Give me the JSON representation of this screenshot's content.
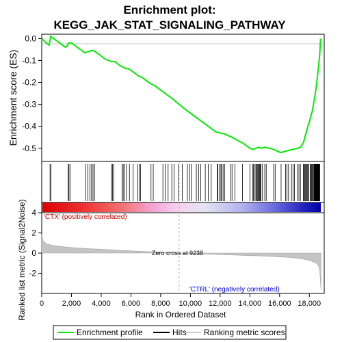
{
  "chart_data": {
    "type": "line",
    "title_line1": "Enrichment plot:",
    "title_line2": "KEGG_JAK_STAT_SIGNALING_PATHWAY",
    "es_panel": {
      "ylabel": "Enrichment score (ES)",
      "ylim": [
        -0.56,
        0.02
      ],
      "yticks": [
        0.0,
        -0.1,
        -0.2,
        -0.3,
        -0.4,
        -0.5
      ],
      "ytick_labels": [
        "0.0",
        "-0.1",
        "-0.2",
        "-0.3",
        "-0.4",
        "-0.5"
      ],
      "series": [
        {
          "name": "Enrichment profile",
          "color": "#00ee00",
          "x": [
            0,
            300,
            500,
            600,
            900,
            1200,
            1600,
            1750,
            1800,
            2000,
            2200,
            2600,
            2900,
            3100,
            3300,
            3500,
            3900,
            4300,
            4700,
            4900,
            5300,
            5600,
            5900,
            6200,
            6500,
            6800,
            7200,
            7600,
            8000,
            8400,
            8800,
            9238,
            9700,
            10200,
            10700,
            11200,
            11700,
            12000,
            12300,
            12800,
            13200,
            13600,
            14000,
            14200,
            14400,
            14600,
            14800,
            15000,
            15300,
            15600,
            15900,
            16100,
            16300,
            16600,
            16900,
            17200,
            17400,
            17600,
            17700,
            17800,
            17900,
            18000,
            18100,
            18200,
            18300,
            18400,
            18500,
            18600,
            18700,
            18750
          ],
          "y": [
            0.0,
            -0.02,
            -0.03,
            0.01,
            -0.005,
            -0.02,
            -0.04,
            -0.03,
            -0.02,
            -0.02,
            -0.03,
            -0.05,
            -0.065,
            -0.06,
            -0.055,
            -0.055,
            -0.075,
            -0.095,
            -0.105,
            -0.105,
            -0.125,
            -0.135,
            -0.14,
            -0.155,
            -0.17,
            -0.18,
            -0.2,
            -0.215,
            -0.235,
            -0.255,
            -0.275,
            -0.3,
            -0.325,
            -0.35,
            -0.375,
            -0.4,
            -0.425,
            -0.43,
            -0.435,
            -0.45,
            -0.465,
            -0.48,
            -0.5,
            -0.505,
            -0.5,
            -0.495,
            -0.5,
            -0.495,
            -0.5,
            -0.505,
            -0.515,
            -0.52,
            -0.515,
            -0.51,
            -0.505,
            -0.5,
            -0.495,
            -0.475,
            -0.45,
            -0.425,
            -0.4,
            -0.38,
            -0.355,
            -0.33,
            -0.29,
            -0.25,
            -0.2,
            -0.14,
            -0.07,
            0.0
          ]
        }
      ]
    },
    "hits": [
      560,
      620,
      1780,
      1830,
      1900,
      2950,
      3100,
      3250,
      3350,
      3450,
      3550,
      4700,
      4760,
      4850,
      5400,
      5480,
      5560,
      5700,
      5900,
      6150,
      6450,
      6550,
      6650,
      7350,
      7500,
      8150,
      8300,
      8500,
      8750,
      8900,
      9200,
      9450,
      9800,
      9950,
      10050,
      10400,
      10550,
      10700,
      11000,
      11200,
      11400,
      11800,
      11850,
      11950,
      12050,
      12100,
      12200,
      12300,
      12700,
      12800,
      13000,
      13500,
      14000,
      14200,
      14250,
      14300,
      14400,
      14450,
      14500,
      14550,
      14600,
      14650,
      14700,
      14750,
      14850,
      15000,
      15100,
      15600,
      15700,
      16100,
      16400,
      16500,
      16600,
      16800,
      16900,
      17000,
      17200,
      17300,
      17400,
      17600,
      17650,
      17700,
      17750,
      17800,
      17850,
      17900,
      17950,
      18050,
      18100,
      18150,
      18200,
      18250,
      18300,
      18320,
      18340,
      18360,
      18380,
      18400,
      18420,
      18440,
      18460,
      18480,
      18500,
      18520,
      18540,
      18560,
      18580,
      18600,
      18620,
      18640,
      18660,
      18680,
      18700
    ],
    "rank_panel": {
      "ylabel": "Ranked list metric (Signal2Noise)",
      "xlabel": "Rank in Ordered Dataset",
      "ylim": [
        -4,
        4
      ],
      "yticks": [
        4,
        2,
        0,
        -2
      ],
      "ytick_labels": [
        "4",
        "2",
        "0",
        "-2"
      ],
      "xlim": [
        0,
        19000
      ],
      "xticks": [
        0,
        2000,
        4000,
        6000,
        8000,
        10000,
        12000,
        14000,
        16000,
        18000
      ],
      "xtick_labels": [
        "0",
        "2,000",
        "4,000",
        "6,000",
        "8,000",
        "10,000",
        "12,000",
        "14,000",
        "16,000",
        "18,000"
      ],
      "metric_x": [
        0,
        100,
        300,
        600,
        1000,
        2000,
        3000,
        4000,
        5000,
        6000,
        7000,
        8000,
        9238,
        10000,
        11000,
        12000,
        13000,
        14000,
        15000,
        16000,
        16800,
        17400,
        17800,
        18100,
        18400,
        18550,
        18650,
        18700,
        18740,
        18760,
        18780
      ],
      "metric_y": [
        1.8,
        1.2,
        0.95,
        0.8,
        0.7,
        0.55,
        0.45,
        0.38,
        0.3,
        0.22,
        0.15,
        0.08,
        0.0,
        -0.05,
        -0.1,
        -0.15,
        -0.2,
        -0.25,
        -0.3,
        -0.38,
        -0.45,
        -0.55,
        -0.65,
        -0.78,
        -0.95,
        -1.1,
        -1.4,
        -1.8,
        -2.5,
        -3.2,
        -3.6
      ],
      "zero_cross_label": "Zero cross at 9238",
      "zero_cross_x": 9238,
      "pos_label": "'CTX' (positively correlated)",
      "neg_label": "'CTRL' (negatively correlated)",
      "pos_color": "#cc0000",
      "neg_color": "#0000cc"
    },
    "legend": {
      "items": [
        {
          "label": "Enrichment profile",
          "color": "#00ee00",
          "kind": "line"
        },
        {
          "label": "Hits",
          "color": "#000000",
          "kind": "line"
        },
        {
          "label": "Ranking metric scores",
          "color": "#cccccc",
          "kind": "line"
        }
      ]
    }
  }
}
